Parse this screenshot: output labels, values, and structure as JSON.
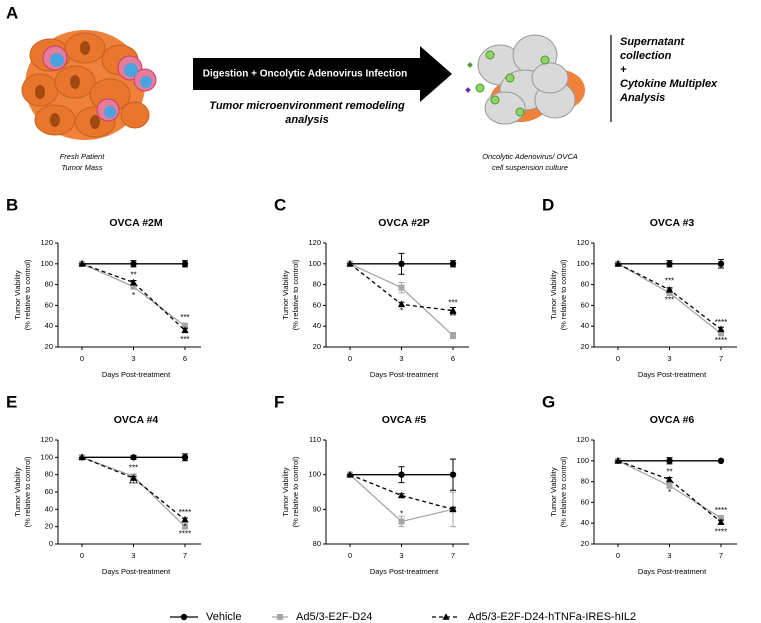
{
  "panel_a": {
    "letter": "A",
    "left_caption": [
      "Fresh Patient",
      "Tumor Mass"
    ],
    "arrow_label": "Digestion + Oncolytic Adenovirus Infection",
    "arrow_subtitle": [
      "Tumor microenvironment remodeling",
      "analysis"
    ],
    "right_caption": [
      "Oncolytic Adenovirus/ OVCA",
      "cell suspension culture"
    ],
    "side_note": [
      "Supernatant",
      "collection",
      "+",
      "Cytokine Multiplex",
      "Analysis"
    ]
  },
  "chart_data": [
    {
      "type": "line",
      "panel": "B",
      "title": "OVCA #2M",
      "xlabel": "Days Post-treatment",
      "ylabel": [
        "Tumor Viability",
        "(% relative to control)"
      ],
      "categories": [
        "0",
        "3",
        "6"
      ],
      "ylim": [
        20,
        120
      ],
      "yticks": [
        20,
        40,
        60,
        80,
        100,
        120
      ],
      "series": [
        {
          "name": "Vehicle",
          "color": "#000000",
          "marker": "circle",
          "dashed": false,
          "values": [
            100,
            100,
            100
          ],
          "errors": [
            0,
            3,
            3
          ]
        },
        {
          "name": "Ad5/3-E2F-D24",
          "color": "#a6a6a6",
          "marker": "square",
          "dashed": false,
          "values": [
            100,
            78,
            40
          ],
          "errors": [
            0,
            2,
            3
          ]
        },
        {
          "name": "Ad5/3-E2F-D24-hTNFa-IRES-hIL2",
          "color": "#000000",
          "marker": "triangle",
          "dashed": true,
          "values": [
            100,
            82,
            36
          ],
          "errors": [
            0,
            2,
            2
          ]
        }
      ],
      "annotations": [
        {
          "text": "**",
          "x": "3",
          "y": 89
        },
        {
          "text": "*",
          "x": "3",
          "y": 69
        },
        {
          "text": "***",
          "x": "6",
          "y": 48
        },
        {
          "text": "***",
          "x": "6",
          "y": 27
        }
      ]
    },
    {
      "type": "line",
      "panel": "C",
      "title": "OVCA #2P",
      "xlabel": "Days Post-treatment",
      "ylabel": [
        "Tumor Viability",
        "(% relative to control)"
      ],
      "categories": [
        "0",
        "3",
        "6"
      ],
      "ylim": [
        20,
        120
      ],
      "yticks": [
        20,
        40,
        60,
        80,
        100,
        120
      ],
      "series": [
        {
          "name": "Vehicle",
          "color": "#000000",
          "marker": "circle",
          "dashed": false,
          "values": [
            100,
            100,
            100
          ],
          "errors": [
            0,
            10,
            3
          ]
        },
        {
          "name": "Ad5/3-E2F-D24",
          "color": "#a6a6a6",
          "marker": "square",
          "dashed": false,
          "values": [
            100,
            77,
            31
          ],
          "errors": [
            0,
            5,
            3
          ]
        },
        {
          "name": "Ad5/3-E2F-D24-hTNFa-IRES-hIL2",
          "color": "#000000",
          "marker": "triangle",
          "dashed": true,
          "values": [
            100,
            61,
            55
          ],
          "errors": [
            0,
            2,
            3
          ]
        }
      ],
      "annotations": [
        {
          "text": "*",
          "x": "3",
          "y": 54
        },
        {
          "text": "***",
          "x": "6",
          "y": 62
        },
        {
          "text": "**",
          "x": "6",
          "y": 49
        }
      ]
    },
    {
      "type": "line",
      "panel": "D",
      "title": "OVCA #3",
      "xlabel": "Days Post-treatment",
      "ylabel": [
        "Tumor Viability",
        "(% relative to control)"
      ],
      "categories": [
        "0",
        "3",
        "7"
      ],
      "ylim": [
        20,
        120
      ],
      "yticks": [
        20,
        40,
        60,
        80,
        100,
        120
      ],
      "series": [
        {
          "name": "Vehicle",
          "color": "#000000",
          "marker": "circle",
          "dashed": false,
          "values": [
            100,
            100,
            100
          ],
          "errors": [
            0,
            3,
            4
          ]
        },
        {
          "name": "Ad5/3-E2F-D24",
          "color": "#a6a6a6",
          "marker": "square",
          "dashed": false,
          "values": [
            100,
            72,
            33
          ],
          "errors": [
            0,
            2,
            2
          ]
        },
        {
          "name": "Ad5/3-E2F-D24-hTNFa-IRES-hIL2",
          "color": "#000000",
          "marker": "triangle",
          "dashed": true,
          "values": [
            100,
            75,
            37
          ],
          "errors": [
            0,
            2,
            2
          ]
        }
      ],
      "annotations": [
        {
          "text": "***",
          "x": "3",
          "y": 83
        },
        {
          "text": "**",
          "x": "3",
          "y": 73
        },
        {
          "text": "***",
          "x": "3",
          "y": 65
        },
        {
          "text": "****",
          "x": "7",
          "y": 43
        },
        {
          "text": "****",
          "x": "7",
          "y": 26
        }
      ]
    },
    {
      "type": "line",
      "panel": "E",
      "title": "OVCA #4",
      "xlabel": "Days Post-treatment",
      "ylabel": [
        "Tumor Viability",
        "(% relative to control)"
      ],
      "categories": [
        "0",
        "3",
        "7"
      ],
      "ylim": [
        0,
        120
      ],
      "yticks": [
        0,
        20,
        40,
        60,
        80,
        100,
        120
      ],
      "series": [
        {
          "name": "Vehicle",
          "color": "#000000",
          "marker": "circle",
          "dashed": false,
          "values": [
            100,
            100,
            100
          ],
          "errors": [
            0,
            2,
            4
          ]
        },
        {
          "name": "Ad5/3-E2F-D24",
          "color": "#a6a6a6",
          "marker": "square",
          "dashed": false,
          "values": [
            100,
            78,
            20
          ],
          "errors": [
            0,
            2,
            2
          ]
        },
        {
          "name": "Ad5/3-E2F-D24-hTNFa-IRES-hIL2",
          "color": "#000000",
          "marker": "triangle",
          "dashed": true,
          "values": [
            100,
            76,
            28
          ],
          "errors": [
            0,
            2,
            2
          ]
        }
      ],
      "annotations": [
        {
          "text": "***",
          "x": "3",
          "y": 87
        },
        {
          "text": "***",
          "x": "3",
          "y": 68
        },
        {
          "text": "****",
          "x": "7",
          "y": 36
        },
        {
          "text": "****",
          "x": "7",
          "y": 11
        },
        {
          "text": "*",
          "x": "7",
          "y": 20
        }
      ]
    },
    {
      "type": "line",
      "panel": "F",
      "title": "OVCA #5",
      "xlabel": "Days Post-treatment",
      "ylabel": [
        "Tumor Viability",
        "(% relative to control)"
      ],
      "categories": [
        "0",
        "3",
        "7"
      ],
      "ylim": [
        80,
        110
      ],
      "yticks": [
        80,
        90,
        100,
        110
      ],
      "series": [
        {
          "name": "Vehicle",
          "color": "#000000",
          "marker": "circle",
          "dashed": false,
          "values": [
            100,
            100,
            100
          ],
          "errors": [
            0,
            2.3,
            4.5
          ]
        },
        {
          "name": "Ad5/3-E2F-D24",
          "color": "#a6a6a6",
          "marker": "square",
          "dashed": false,
          "values": [
            100,
            86.5,
            90
          ],
          "errors": [
            0,
            1.5,
            5
          ]
        },
        {
          "name": "Ad5/3-E2F-D24-hTNFa-IRES-hIL2",
          "color": "#000000",
          "marker": "triangle",
          "dashed": true,
          "values": [
            100,
            94,
            90
          ],
          "errors": [
            0,
            0.5,
            0.5
          ]
        }
      ],
      "annotations": [
        {
          "text": "*",
          "x": "3",
          "y": 88.6
        }
      ]
    },
    {
      "type": "line",
      "panel": "G",
      "title": "OVCA #6",
      "xlabel": "Days Post-treatment",
      "ylabel": [
        "Tumor Viability",
        "(% relative to control)"
      ],
      "categories": [
        "0",
        "3",
        "7"
      ],
      "ylim": [
        20,
        120
      ],
      "yticks": [
        20,
        40,
        60,
        80,
        100,
        120
      ],
      "series": [
        {
          "name": "Vehicle",
          "color": "#000000",
          "marker": "circle",
          "dashed": false,
          "values": [
            100,
            100,
            100
          ],
          "errors": [
            0,
            3,
            0
          ]
        },
        {
          "name": "Ad5/3-E2F-D24",
          "color": "#a6a6a6",
          "marker": "square",
          "dashed": false,
          "values": [
            100,
            76,
            45
          ],
          "errors": [
            0,
            2,
            2
          ]
        },
        {
          "name": "Ad5/3-E2F-D24-hTNFa-IRES-hIL2",
          "color": "#000000",
          "marker": "triangle",
          "dashed": true,
          "values": [
            100,
            82,
            41
          ],
          "errors": [
            0,
            2,
            2
          ]
        }
      ],
      "annotations": [
        {
          "text": "**",
          "x": "3",
          "y": 89
        },
        {
          "text": "*",
          "x": "3",
          "y": 69
        },
        {
          "text": "****",
          "x": "7",
          "y": 52
        },
        {
          "text": "****",
          "x": "7",
          "y": 31
        }
      ]
    }
  ]
}
